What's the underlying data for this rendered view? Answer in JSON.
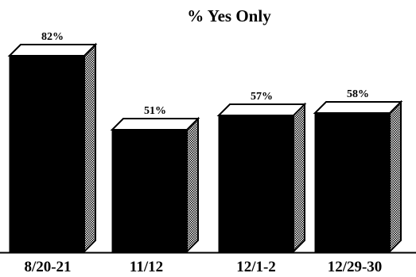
{
  "chart_data": {
    "type": "bar",
    "title": "% Yes Only",
    "categories": [
      "8/20-21",
      "11/12",
      "12/1-2",
      "12/29-30"
    ],
    "values": [
      82,
      51,
      57,
      58
    ],
    "value_labels": [
      "82%",
      "51%",
      "57%",
      "58%"
    ],
    "ylim": [
      0,
      100
    ],
    "grid": false,
    "legend": "none",
    "bar_color": "#000000",
    "style": "3d"
  }
}
